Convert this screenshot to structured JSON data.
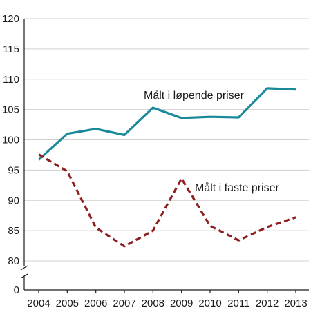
{
  "chart_data": {
    "type": "line",
    "title": "",
    "xlabel": "",
    "ylabel": "",
    "x": [
      "2004",
      "2005",
      "2006",
      "2007",
      "2008",
      "2009",
      "2010",
      "2011",
      "2012",
      "2013"
    ],
    "yticks": [
      "0",
      "80",
      "85",
      "90",
      "95",
      "100",
      "105",
      "110",
      "115",
      "120"
    ],
    "ylim": [
      80,
      120
    ],
    "axis_break": true,
    "grid": "horizontal",
    "legend": "inline labels",
    "series": [
      {
        "name": "Målt i løpende priser",
        "color": "#1a8a9a",
        "style": "solid",
        "values": [
          96.7,
          101.0,
          101.8,
          100.8,
          105.3,
          103.6,
          103.8,
          103.7,
          108.5,
          108.3
        ]
      },
      {
        "name": "Målt i faste priser",
        "color": "#8c2020",
        "style": "dashed",
        "values": [
          97.6,
          94.8,
          85.5,
          82.4,
          85.0,
          93.6,
          85.8,
          83.4,
          85.6,
          87.2
        ]
      }
    ]
  }
}
